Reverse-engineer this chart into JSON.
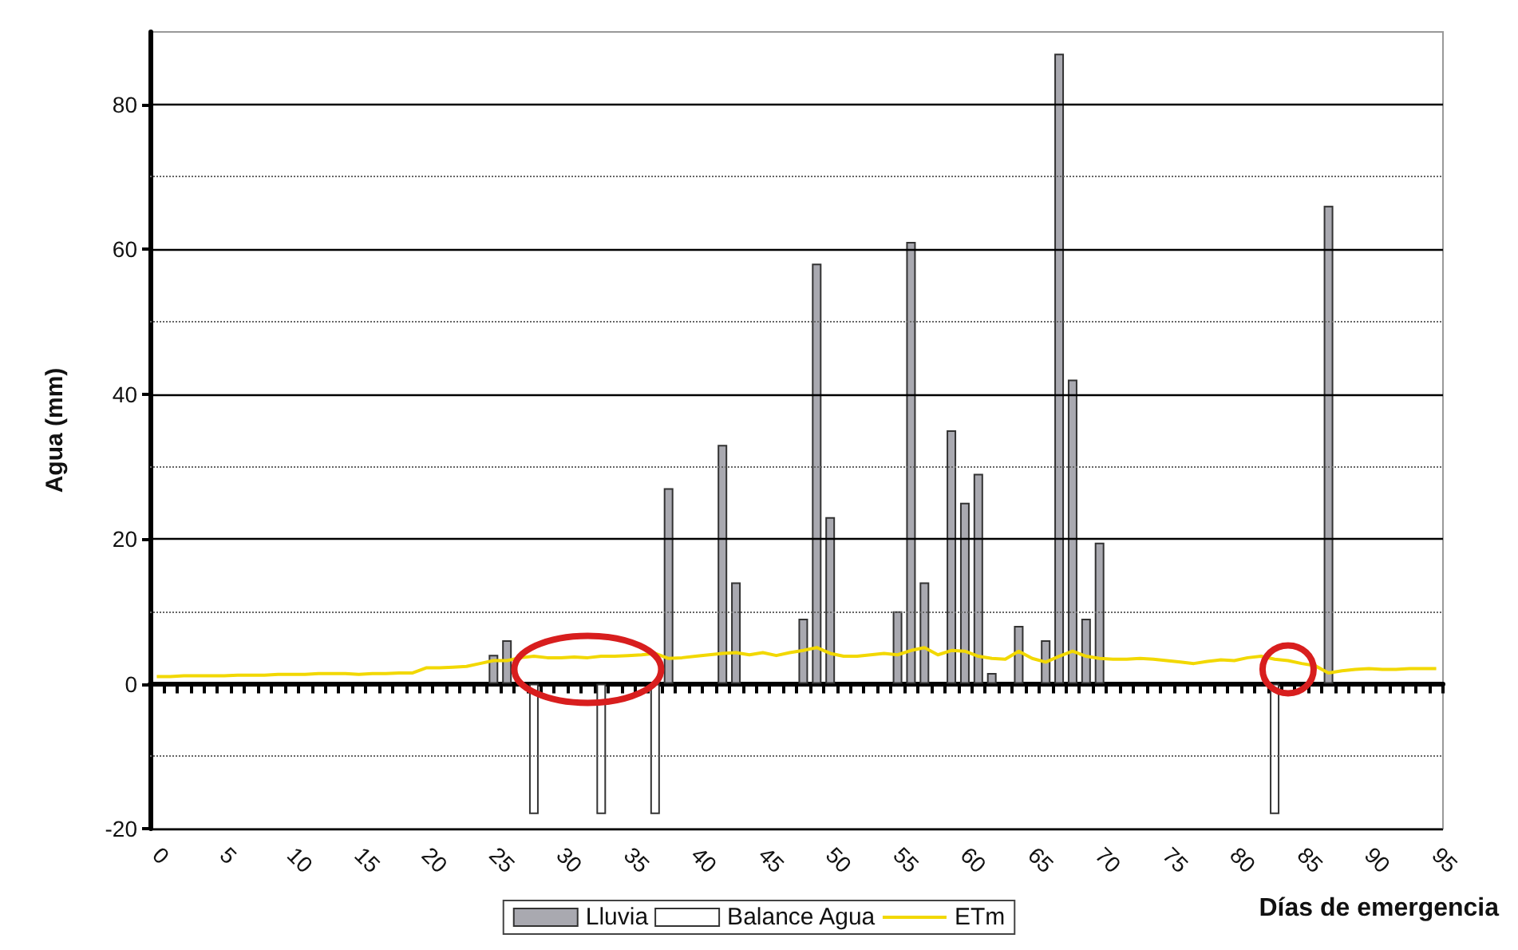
{
  "chart_data": {
    "type": "bar",
    "xlabel": "Días de emergencia",
    "ylabel": "Agua (mm)",
    "categories": [
      "0",
      null,
      null,
      null,
      null,
      "5",
      null,
      null,
      null,
      null,
      "10",
      null,
      null,
      null,
      null,
      "15",
      null,
      null,
      null,
      null,
      "20",
      null,
      null,
      null,
      null,
      "25",
      null,
      null,
      null,
      null,
      "30",
      null,
      null,
      null,
      null,
      "35",
      null,
      null,
      null,
      null,
      "40",
      null,
      null,
      null,
      null,
      "45",
      null,
      null,
      null,
      null,
      "50",
      null,
      null,
      null,
      null,
      "55",
      null,
      null,
      null,
      null,
      "60",
      null,
      null,
      null,
      null,
      "65",
      null,
      null,
      null,
      null,
      "70",
      null,
      null,
      null,
      null,
      "75",
      null,
      null,
      null,
      null,
      "80",
      null,
      null,
      null,
      null,
      "85",
      null,
      null,
      null,
      null,
      "90",
      null,
      null,
      null,
      null,
      "95"
    ],
    "series": [
      {
        "name": "Lluvia",
        "color": "#a9a9b0",
        "values": [
          null,
          null,
          null,
          null,
          null,
          null,
          null,
          null,
          null,
          null,
          null,
          null,
          null,
          null,
          null,
          null,
          null,
          null,
          null,
          null,
          null,
          null,
          null,
          null,
          null,
          4,
          6,
          null,
          null,
          null,
          null,
          null,
          null,
          null,
          null,
          null,
          null,
          null,
          27,
          null,
          null,
          null,
          33,
          14,
          null,
          null,
          null,
          null,
          9,
          58,
          23,
          null,
          null,
          null,
          null,
          10,
          61,
          14,
          null,
          35,
          25,
          29,
          1.5,
          null,
          8,
          null,
          6,
          87,
          42,
          9,
          19.5,
          null,
          null,
          null,
          null,
          null,
          null,
          null,
          null,
          null,
          null,
          null,
          null,
          null,
          null,
          null,
          null,
          66,
          null,
          null,
          null,
          null,
          null,
          null,
          null,
          null
        ]
      },
      {
        "name": "Balance Agua",
        "color": "#ffffff",
        "values": [
          null,
          null,
          null,
          null,
          null,
          null,
          null,
          null,
          null,
          null,
          null,
          null,
          null,
          null,
          null,
          null,
          null,
          null,
          null,
          null,
          null,
          null,
          null,
          null,
          null,
          null,
          null,
          null,
          -18,
          null,
          null,
          null,
          null,
          -18,
          null,
          null,
          null,
          -18,
          null,
          null,
          null,
          null,
          null,
          null,
          null,
          null,
          null,
          null,
          null,
          null,
          null,
          null,
          null,
          null,
          null,
          null,
          null,
          null,
          null,
          null,
          null,
          null,
          null,
          null,
          null,
          null,
          null,
          null,
          null,
          null,
          null,
          null,
          null,
          null,
          null,
          null,
          null,
          null,
          null,
          null,
          null,
          null,
          null,
          -18,
          null,
          null,
          null,
          null,
          null,
          null,
          null,
          null,
          null,
          null,
          null,
          null
        ]
      },
      {
        "name": "ETm",
        "type": "line",
        "color": "#f2d800",
        "values": [
          1.0,
          1.0,
          1.1,
          1.1,
          1.1,
          1.1,
          1.2,
          1.2,
          1.2,
          1.3,
          1.3,
          1.3,
          1.4,
          1.4,
          1.4,
          1.3,
          1.4,
          1.4,
          1.5,
          1.5,
          2.2,
          2.2,
          2.3,
          2.4,
          2.8,
          3.2,
          3.2,
          3.6,
          3.8,
          3.6,
          3.6,
          3.7,
          3.6,
          3.8,
          3.8,
          3.9,
          4.0,
          4.2,
          3.5,
          3.6,
          3.8,
          4.0,
          4.2,
          4.3,
          4.0,
          4.3,
          3.9,
          4.3,
          4.6,
          5.0,
          4.2,
          3.8,
          3.8,
          4.0,
          4.2,
          4.0,
          4.6,
          5.0,
          4.0,
          4.6,
          4.5,
          3.8,
          3.5,
          3.4,
          4.5,
          3.5,
          3.0,
          3.8,
          4.5,
          3.8,
          3.5,
          3.4,
          3.4,
          3.5,
          3.4,
          3.2,
          3.0,
          2.8,
          3.1,
          3.3,
          3.2,
          3.6,
          3.8,
          3.4,
          3.2,
          2.8,
          2.5,
          1.5,
          1.8,
          2.0,
          2.1,
          2.0,
          2.0,
          2.1,
          2.1,
          2.1
        ]
      }
    ],
    "ylim": [
      -20,
      90
    ],
    "yticks": [
      -20,
      {
        "value": -10,
        "label": null
      },
      0,
      {
        "value": 10,
        "label": null
      },
      20,
      {
        "value": 30,
        "label": null
      },
      40,
      {
        "value": 50,
        "label": null
      },
      60,
      {
        "value": 70,
        "label": null
      },
      80
    ],
    "grid": "y",
    "legend": "bottom",
    "marker": "none",
    "line_style": "solid"
  }
}
